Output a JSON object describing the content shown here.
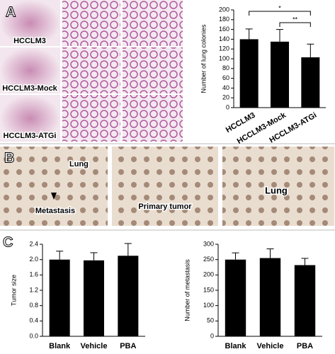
{
  "panels": [
    "A",
    "B",
    "C"
  ],
  "images": {
    "a_rows": [
      "HCCLM3",
      "HCCLM3-Mock",
      "HCCLM3-ATGi"
    ],
    "b_labels": [
      "Lung",
      "Metastasis",
      "Primary tumor",
      "Lung"
    ]
  },
  "chart_data": [
    {
      "type": "bar",
      "y_label": "Number of lung colonies",
      "categories": [
        "HCCLM3",
        "HCCLM3-Mock",
        "HCCLM3-ATGi"
      ],
      "values": [
        140,
        135,
        103
      ],
      "errors": [
        21,
        25,
        27
      ],
      "color": "#000000",
      "ylim": [
        0,
        200
      ],
      "yticks": [
        0,
        20,
        40,
        60,
        80,
        100,
        120,
        140,
        160,
        180,
        200
      ],
      "annotations": [
        {
          "text": "*",
          "between": [
            "HCCLM3",
            "HCCLM3-ATGi"
          ]
        },
        {
          "text": "**",
          "between": [
            "HCCLM3-Mock",
            "HCCLM3-ATGi"
          ]
        }
      ]
    },
    {
      "type": "bar",
      "y_label": "Tumor size",
      "categories": [
        "Blank",
        "Vehicle",
        "PBA"
      ],
      "values": [
        2.0,
        1.98,
        2.1
      ],
      "errors": [
        0.22,
        0.2,
        0.32
      ],
      "color": "#000000",
      "ylim": [
        0,
        2.4
      ],
      "yticks": [
        {
          "value": 0,
          "label": "0.0"
        },
        0.4,
        0.8,
        1.2,
        1.6,
        {
          "value": 2,
          "label": "2.0"
        },
        2.4
      ]
    },
    {
      "type": "bar",
      "y_label": "Number of metastasis",
      "categories": [
        "Blank",
        "Vehicle",
        "PBA"
      ],
      "values": [
        250,
        255,
        232
      ],
      "errors": [
        22,
        30,
        22
      ],
      "color": "#000000",
      "ylim": [
        0,
        300
      ],
      "yticks": [
        0,
        50,
        100,
        150,
        200,
        250,
        300
      ]
    }
  ]
}
